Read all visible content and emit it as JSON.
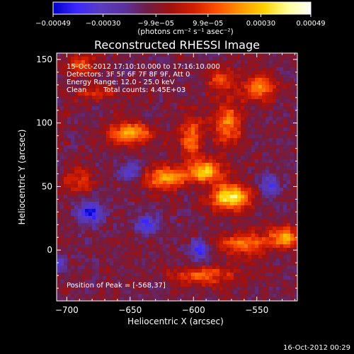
{
  "chart_data": {
    "type": "heatmap",
    "title": "Reconstructed RHESSI Image",
    "xlabel": "Heliocentric X (arcsec)",
    "ylabel": "Heliocentric Y (arcsec)",
    "xlim": [
      -708,
      -518
    ],
    "ylim": [
      -40,
      155
    ],
    "xticks": [
      -700,
      -650,
      -600,
      -550
    ],
    "yticks": [
      0,
      50,
      100,
      150
    ],
    "xtick_labels": [
      "−700",
      "−650",
      "−600",
      "−550"
    ],
    "ytick_labels": [
      "0",
      "50",
      "100",
      "150"
    ],
    "colorbar": {
      "range": [
        -0.00049,
        0.00049
      ],
      "tick_values": [
        -0.00049,
        -0.0003,
        -9.9e-05,
        9.9e-05,
        0.0003,
        0.00049
      ],
      "tick_labels": [
        "−0.00049",
        "−0.00030",
        "−9.9e−05",
        "9.9e−05",
        "0.00030",
        "0.00049"
      ],
      "unit_label": "(photons cm⁻² s⁻¹ asec⁻²)",
      "colors": [
        "#0000c8",
        "#3c28ff",
        "#5a3cc0",
        "#5a32a0",
        "#6e1e46",
        "#a01010",
        "#d21e00",
        "#ff5000",
        "#ff9600",
        "#ffd200",
        "#ffff96",
        "#ffffff"
      ]
    },
    "annotations": {
      "time_range": "15-Oct-2012 17:10:10.000 to 17:16:10.000",
      "detectors": "Detectors: 3F 5F 6F 7F 8F 9F, Att 0",
      "energy_range": "Energy Range: 12.0 - 25.0 keV",
      "method": "Clean",
      "total_counts": "Total counts: 4.45E+03",
      "peak": "Position of Peak = [-568,37]"
    },
    "peak_position": [
      -568,
      37
    ],
    "grid": false,
    "bright_sources": [
      {
        "x": -570,
        "y": 42,
        "amplitude": 0.00049,
        "sx": 11,
        "sy": 7
      },
      {
        "x": -591,
        "y": 62,
        "amplitude": 0.0004,
        "sx": 10,
        "sy": 6
      },
      {
        "x": -622,
        "y": 57,
        "amplitude": 0.00036,
        "sx": 12,
        "sy": 6
      },
      {
        "x": -650,
        "y": 92,
        "amplitude": 0.00038,
        "sx": 12,
        "sy": 6
      },
      {
        "x": -602,
        "y": 88,
        "amplitude": 0.0003,
        "sx": 6,
        "sy": 12
      },
      {
        "x": -573,
        "y": 100,
        "amplitude": 0.0003,
        "sx": 8,
        "sy": 13
      },
      {
        "x": -548,
        "y": 128,
        "amplitude": 0.00032,
        "sx": 9,
        "sy": 7
      },
      {
        "x": -580,
        "y": 135,
        "amplitude": 0.00022,
        "sx": 7,
        "sy": 7
      },
      {
        "x": -560,
        "y": 5,
        "amplitude": 0.0003,
        "sx": 14,
        "sy": 6
      },
      {
        "x": -528,
        "y": 10,
        "amplitude": 0.00034,
        "sx": 9,
        "sy": 6
      },
      {
        "x": -592,
        "y": -20,
        "amplitude": 0.00024,
        "sx": 18,
        "sy": 5
      },
      {
        "x": -688,
        "y": 145,
        "amplitude": 0.00024,
        "sx": 8,
        "sy": 6
      },
      {
        "x": -690,
        "y": 55,
        "amplitude": 0.0002,
        "sx": 8,
        "sy": 7
      },
      {
        "x": -676,
        "y": 123,
        "amplitude": 0.00016,
        "sx": 14,
        "sy": 4
      }
    ],
    "dark_sources": [
      {
        "x": -682,
        "y": 30,
        "amplitude": -0.00034,
        "sx": 7,
        "sy": 6
      },
      {
        "x": -636,
        "y": 20,
        "amplitude": -0.0003,
        "sx": 6,
        "sy": 5
      },
      {
        "x": -595,
        "y": 0,
        "amplitude": -0.00026,
        "sx": 5,
        "sy": 6
      },
      {
        "x": -540,
        "y": 50,
        "amplitude": -0.00022,
        "sx": 6,
        "sy": 6
      },
      {
        "x": -650,
        "y": 62,
        "amplitude": -0.00022,
        "sx": 6,
        "sy": 5
      },
      {
        "x": -708,
        "y": -10,
        "amplitude": -0.00024,
        "sx": 5,
        "sy": 6
      }
    ]
  },
  "footer": {
    "timestamp": "16-Oct-2012 00:29"
  }
}
